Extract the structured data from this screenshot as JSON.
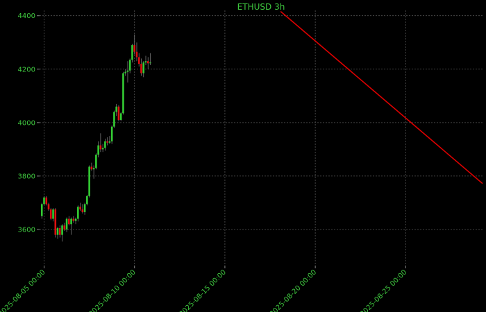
{
  "chart_data": {
    "type": "candlestick",
    "title": "ETHUSD 3h",
    "x": [
      "2025-08-04 21:00",
      "2025-08-05 00:00",
      "2025-08-05 03:00",
      "2025-08-05 06:00",
      "2025-08-05 09:00",
      "2025-08-05 12:00",
      "2025-08-05 15:00",
      "2025-08-05 18:00",
      "2025-08-05 21:00",
      "2025-08-06 00:00",
      "2025-08-06 03:00",
      "2025-08-06 06:00",
      "2025-08-06 09:00",
      "2025-08-06 12:00",
      "2025-08-06 15:00",
      "2025-08-06 18:00",
      "2025-08-06 21:00",
      "2025-08-07 00:00",
      "2025-08-07 03:00",
      "2025-08-07 06:00",
      "2025-08-07 09:00",
      "2025-08-07 12:00",
      "2025-08-07 15:00",
      "2025-08-07 18:00",
      "2025-08-07 21:00",
      "2025-08-08 00:00",
      "2025-08-08 03:00",
      "2025-08-08 06:00",
      "2025-08-08 09:00",
      "2025-08-08 12:00",
      "2025-08-08 15:00",
      "2025-08-08 18:00",
      "2025-08-08 21:00",
      "2025-08-09 00:00",
      "2025-08-09 03:00",
      "2025-08-09 06:00",
      "2025-08-09 09:00",
      "2025-08-09 12:00",
      "2025-08-09 15:00",
      "2025-08-09 18:00",
      "2025-08-09 21:00",
      "2025-08-10 00:00",
      "2025-08-10 03:00",
      "2025-08-10 06:00",
      "2025-08-10 09:00",
      "2025-08-10 12:00",
      "2025-08-10 15:00",
      "2025-08-10 18:00",
      "2025-08-10 21:00"
    ],
    "open": [
      3650,
      3695,
      3720,
      3695,
      3675,
      3640,
      3675,
      3580,
      3605,
      3580,
      3615,
      3600,
      3640,
      3620,
      3640,
      3632,
      3640,
      3685,
      3675,
      3665,
      3695,
      3725,
      3835,
      3825,
      3830,
      3880,
      3915,
      3900,
      3905,
      3930,
      3925,
      3930,
      3985,
      4040,
      4060,
      4010,
      4035,
      4185,
      4190,
      4195,
      4235,
      4290,
      4265,
      4245,
      4220,
      4185,
      4225,
      4230,
      4222
    ],
    "high": [
      3700,
      3725,
      3725,
      3700,
      3680,
      3680,
      3680,
      3610,
      3615,
      3620,
      3625,
      3645,
      3650,
      3645,
      3650,
      3645,
      3690,
      3700,
      3695,
      3700,
      3730,
      3840,
      3850,
      3840,
      3885,
      3930,
      3960,
      3920,
      3940,
      3945,
      3950,
      3990,
      4045,
      4070,
      4065,
      4040,
      4190,
      4200,
      4230,
      4240,
      4295,
      4330,
      4300,
      4260,
      4240,
      4230,
      4250,
      4245,
      4260
    ],
    "low": [
      3640,
      3690,
      3690,
      3670,
      3635,
      3630,
      3570,
      3565,
      3570,
      3555,
      3595,
      3590,
      3615,
      3580,
      3625,
      3620,
      3630,
      3670,
      3660,
      3655,
      3690,
      3720,
      3820,
      3790,
      3825,
      3870,
      3890,
      3890,
      3895,
      3915,
      3920,
      3920,
      3980,
      4025,
      4005,
      4005,
      4030,
      4175,
      4150,
      4185,
      4225,
      4255,
      4230,
      4210,
      4175,
      4170,
      4215,
      4200,
      4215
    ],
    "close": [
      3695,
      3720,
      3695,
      3675,
      3640,
      3675,
      3580,
      3605,
      3580,
      3615,
      3600,
      3640,
      3620,
      3640,
      3632,
      3640,
      3685,
      3675,
      3665,
      3695,
      3725,
      3835,
      3825,
      3830,
      3880,
      3915,
      3900,
      3905,
      3930,
      3925,
      3930,
      3985,
      4040,
      4060,
      4010,
      4035,
      4185,
      4190,
      4195,
      4235,
      4290,
      4265,
      4245,
      4220,
      4185,
      4225,
      4230,
      4222,
      4225
    ],
    "up_color": "#33cc33",
    "down_color": "#dd1111",
    "wick_color": "#777777",
    "lines": [
      {
        "color": "#dd0000",
        "x": [
          "2025-08-18 02:00",
          "2025-08-29 06:00"
        ],
        "y": [
          4416,
          3772
        ]
      }
    ],
    "xlim": [
      "2025-08-04 18:00",
      "2025-08-29 06:00"
    ],
    "xticks": [
      "2025-08-05 00:00",
      "2025-08-10 00:00",
      "2025-08-15 00:00",
      "2025-08-20 00:00",
      "2025-08-25 00:00"
    ],
    "ylim": [
      3465,
      4420
    ],
    "yticks": [
      3600,
      3800,
      4000,
      4200,
      4400
    ],
    "grid": true
  }
}
